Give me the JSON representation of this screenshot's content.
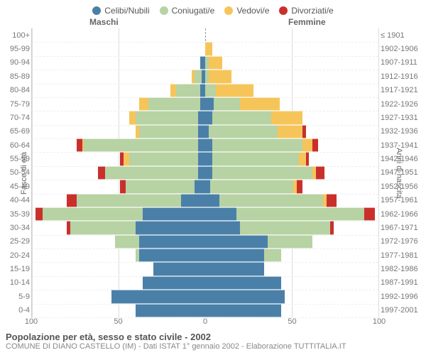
{
  "legend": {
    "items": [
      {
        "label": "Celibi/Nubili",
        "color": "#4a80a8"
      },
      {
        "label": "Coniugati/e",
        "color": "#b7d2a3"
      },
      {
        "label": "Vedovi/e",
        "color": "#f6c55a"
      },
      {
        "label": "Divorziati/e",
        "color": "#c9302c"
      }
    ]
  },
  "genderLabels": {
    "left": "Maschi",
    "right": "Femmine"
  },
  "axis": {
    "leftLabel": "Fasce di età",
    "rightLabel": "Anni di nascita",
    "xlim": 100,
    "xticks": [
      100,
      50,
      0,
      50,
      100
    ]
  },
  "chart": {
    "background": "#ffffff",
    "grid_color": "#dddddd",
    "grid_dash_color": "#eeeeee",
    "center_line_color": "#999999",
    "row_gap": 1,
    "seg_border": "rgba(255,255,255,0.6)"
  },
  "footer": {
    "title": "Popolazione per età, sesso e stato civile - 2002",
    "subtitle": "COMUNE DI DIANO CASTELLO (IM) - Dati ISTAT 1° gennaio 2002 - Elaborazione TUTTITALIA.IT"
  },
  "rows": [
    {
      "age": "100+",
      "birth": "≤ 1901",
      "m": [
        0,
        0,
        0,
        0
      ],
      "f": [
        0,
        0,
        0,
        0
      ]
    },
    {
      "age": "95-99",
      "birth": "1902-1906",
      "m": [
        0,
        0,
        0,
        0
      ],
      "f": [
        0,
        0,
        4,
        0
      ]
    },
    {
      "age": "90-94",
      "birth": "1907-1911",
      "m": [
        3,
        0,
        0,
        0
      ],
      "f": [
        0,
        2,
        8,
        0
      ]
    },
    {
      "age": "85-89",
      "birth": "1912-1916",
      "m": [
        2,
        4,
        2,
        0
      ],
      "f": [
        0,
        2,
        13,
        0
      ]
    },
    {
      "age": "80-84",
      "birth": "1917-1921",
      "m": [
        3,
        14,
        3,
        0
      ],
      "f": [
        0,
        6,
        22,
        0
      ]
    },
    {
      "age": "75-79",
      "birth": "1922-1926",
      "m": [
        3,
        30,
        5,
        0
      ],
      "f": [
        5,
        15,
        23,
        0
      ]
    },
    {
      "age": "70-74",
      "birth": "1927-1931",
      "m": [
        4,
        36,
        4,
        0
      ],
      "f": [
        4,
        34,
        18,
        0
      ]
    },
    {
      "age": "65-69",
      "birth": "1932-1936",
      "m": [
        4,
        34,
        2,
        0
      ],
      "f": [
        2,
        40,
        14,
        2
      ]
    },
    {
      "age": "60-64",
      "birth": "1937-1941",
      "m": [
        4,
        66,
        1,
        3
      ],
      "f": [
        4,
        52,
        6,
        3
      ]
    },
    {
      "age": "55-59",
      "birth": "1942-1946",
      "m": [
        4,
        40,
        3,
        2
      ],
      "f": [
        4,
        50,
        4,
        2
      ]
    },
    {
      "age": "50-54",
      "birth": "1947-1951",
      "m": [
        4,
        54,
        0,
        4
      ],
      "f": [
        4,
        58,
        2,
        5
      ]
    },
    {
      "age": "45-49",
      "birth": "1952-1956",
      "m": [
        6,
        40,
        0,
        3
      ],
      "f": [
        3,
        48,
        2,
        3
      ]
    },
    {
      "age": "40-44",
      "birth": "1957-1961",
      "m": [
        14,
        60,
        0,
        6
      ],
      "f": [
        8,
        60,
        2,
        6
      ]
    },
    {
      "age": "35-39",
      "birth": "1962-1966",
      "m": [
        36,
        58,
        0,
        4
      ],
      "f": [
        18,
        74,
        0,
        6
      ]
    },
    {
      "age": "30-34",
      "birth": "1967-1971",
      "m": [
        40,
        38,
        0,
        2
      ],
      "f": [
        20,
        52,
        0,
        2
      ]
    },
    {
      "age": "25-29",
      "birth": "1972-1976",
      "m": [
        38,
        14,
        0,
        0
      ],
      "f": [
        36,
        26,
        0,
        0
      ]
    },
    {
      "age": "20-24",
      "birth": "1977-1981",
      "m": [
        38,
        2,
        0,
        0
      ],
      "f": [
        34,
        10,
        0,
        0
      ]
    },
    {
      "age": "15-19",
      "birth": "1982-1986",
      "m": [
        30,
        0,
        0,
        0
      ],
      "f": [
        34,
        0,
        0,
        0
      ]
    },
    {
      "age": "10-14",
      "birth": "1987-1991",
      "m": [
        36,
        0,
        0,
        0
      ],
      "f": [
        44,
        0,
        0,
        0
      ]
    },
    {
      "age": "5-9",
      "birth": "1992-1996",
      "m": [
        54,
        0,
        0,
        0
      ],
      "f": [
        46,
        0,
        0,
        0
      ]
    },
    {
      "age": "0-4",
      "birth": "1997-2001",
      "m": [
        40,
        0,
        0,
        0
      ],
      "f": [
        44,
        0,
        0,
        0
      ]
    }
  ]
}
